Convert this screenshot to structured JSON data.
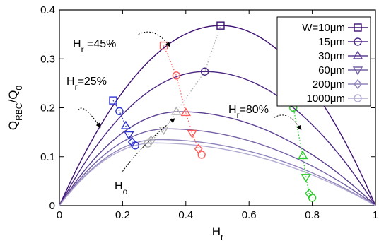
{
  "chart_data": {
    "type": "line",
    "title": "",
    "xlabel": "H_t",
    "ylabel": "Q_RBC/Q_0",
    "xlim": [
      0,
      1
    ],
    "ylim": [
      0,
      0.4
    ],
    "xticks": [
      0,
      0.2,
      0.4,
      0.6,
      0.8,
      1
    ],
    "xtick_labels": [
      "0",
      "0.2",
      "0.4",
      "0.6",
      "0.8",
      "1"
    ],
    "yticks": [
      0,
      0.1,
      0.2,
      0.3,
      0.4
    ],
    "ytick_labels": [
      "0",
      "0.1",
      "0.2",
      "0.3",
      "0.4"
    ],
    "grid": false,
    "legend_position": "top-right",
    "series": [
      {
        "name": "W=10μm",
        "label_main": "W=10",
        "label_unit": "μm",
        "marker": "square",
        "peak": 0.368,
        "peak_x": 0.51,
        "color": "#3d0f72",
        "points": [
          [
            0.17,
            0.215
          ],
          [
            0.33,
            0.327
          ],
          [
            0.51,
            0.368
          ],
          [
            0.71,
            0.31
          ]
        ]
      },
      {
        "name": "15μm",
        "label_main": "15",
        "label_unit": "μm",
        "marker": "circle",
        "peak": 0.274,
        "peak_x": 0.46,
        "color": "#4b2682",
        "points": [
          [
            0.19,
            0.193
          ],
          [
            0.37,
            0.266
          ],
          [
            0.46,
            0.274
          ],
          [
            0.74,
            0.2
          ]
        ]
      },
      {
        "name": "30μm",
        "label_main": "30",
        "label_unit": "μm",
        "marker": "triangle-up",
        "peak": 0.192,
        "peak_x": 0.38,
        "color": "#5d4192",
        "points": [
          [
            0.21,
            0.163
          ],
          [
            0.37,
            0.192
          ],
          [
            0.4,
            0.19
          ],
          [
            0.77,
            0.102
          ]
        ]
      },
      {
        "name": "60μm",
        "label_main": "60",
        "label_unit": "μm",
        "marker": "triangle-down",
        "peak": 0.157,
        "peak_x": 0.34,
        "color": "#7561a5",
        "points": [
          [
            0.22,
            0.145
          ],
          [
            0.33,
            0.155
          ],
          [
            0.42,
            0.148
          ],
          [
            0.78,
            0.058
          ]
        ]
      },
      {
        "name": "200μm",
        "label_main": "200",
        "label_unit": "μm",
        "marker": "diamond",
        "peak": 0.135,
        "peak_x": 0.31,
        "color": "#9183bb",
        "points": [
          [
            0.23,
            0.13
          ],
          [
            0.29,
            0.133
          ],
          [
            0.44,
            0.116
          ],
          [
            0.79,
            0.025
          ]
        ]
      },
      {
        "name": "1000μm",
        "label_main": "1000",
        "label_unit": "μm",
        "marker": "circle",
        "peak": 0.128,
        "peak_x": 0.3,
        "color": "#b3aad1",
        "points": [
          [
            0.24,
            0.123
          ],
          [
            0.28,
            0.127
          ],
          [
            0.45,
            0.104
          ],
          [
            0.8,
            0.016
          ]
        ]
      }
    ],
    "guide_lines": [
      {
        "name": "Hr=25%",
        "color": "#2f33cf",
        "points": [
          [
            0.17,
            0.215
          ],
          [
            0.19,
            0.193
          ],
          [
            0.21,
            0.163
          ],
          [
            0.22,
            0.145
          ],
          [
            0.23,
            0.13
          ],
          [
            0.24,
            0.123
          ]
        ]
      },
      {
        "name": "Hr=45%",
        "color": "#ff5a5a",
        "points": [
          [
            0.33,
            0.327
          ],
          [
            0.37,
            0.266
          ],
          [
            0.4,
            0.19
          ],
          [
            0.42,
            0.148
          ],
          [
            0.44,
            0.116
          ],
          [
            0.45,
            0.104
          ]
        ]
      },
      {
        "name": "Ho",
        "color": "#b0b0b0",
        "points": [
          [
            0.28,
            0.127
          ],
          [
            0.29,
            0.133
          ],
          [
            0.33,
            0.155
          ],
          [
            0.37,
            0.192
          ],
          [
            0.46,
            0.274
          ],
          [
            0.51,
            0.368
          ]
        ]
      },
      {
        "name": "Hr=80%",
        "color": "#2ccc2c",
        "points": [
          [
            0.71,
            0.31
          ],
          [
            0.74,
            0.2
          ],
          [
            0.77,
            0.102
          ],
          [
            0.78,
            0.058
          ],
          [
            0.79,
            0.025
          ],
          [
            0.8,
            0.016
          ]
        ]
      }
    ],
    "annotations": [
      {
        "name": "Hr=45%",
        "base": "H",
        "sub": "r",
        "suffix": " =45%",
        "tail": [
          0.25,
          0.35
        ],
        "head": [
          0.35,
          0.325
        ]
      },
      {
        "name": "Hr=25%",
        "base": "H",
        "sub": "r",
        "suffix": "=25%",
        "tail": [
          0.06,
          0.195
        ],
        "head": [
          0.13,
          0.16
        ]
      },
      {
        "name": "Hr=80%",
        "base": "H",
        "sub": "r",
        "suffix": "=80%",
        "tail": [
          0.68,
          0.18
        ],
        "head": [
          0.765,
          0.155
        ]
      },
      {
        "name": "Ho",
        "base": "H",
        "sub": "o",
        "suffix": "",
        "tail": [
          0.2,
          0.07
        ],
        "head": [
          0.365,
          0.178
        ]
      }
    ]
  }
}
